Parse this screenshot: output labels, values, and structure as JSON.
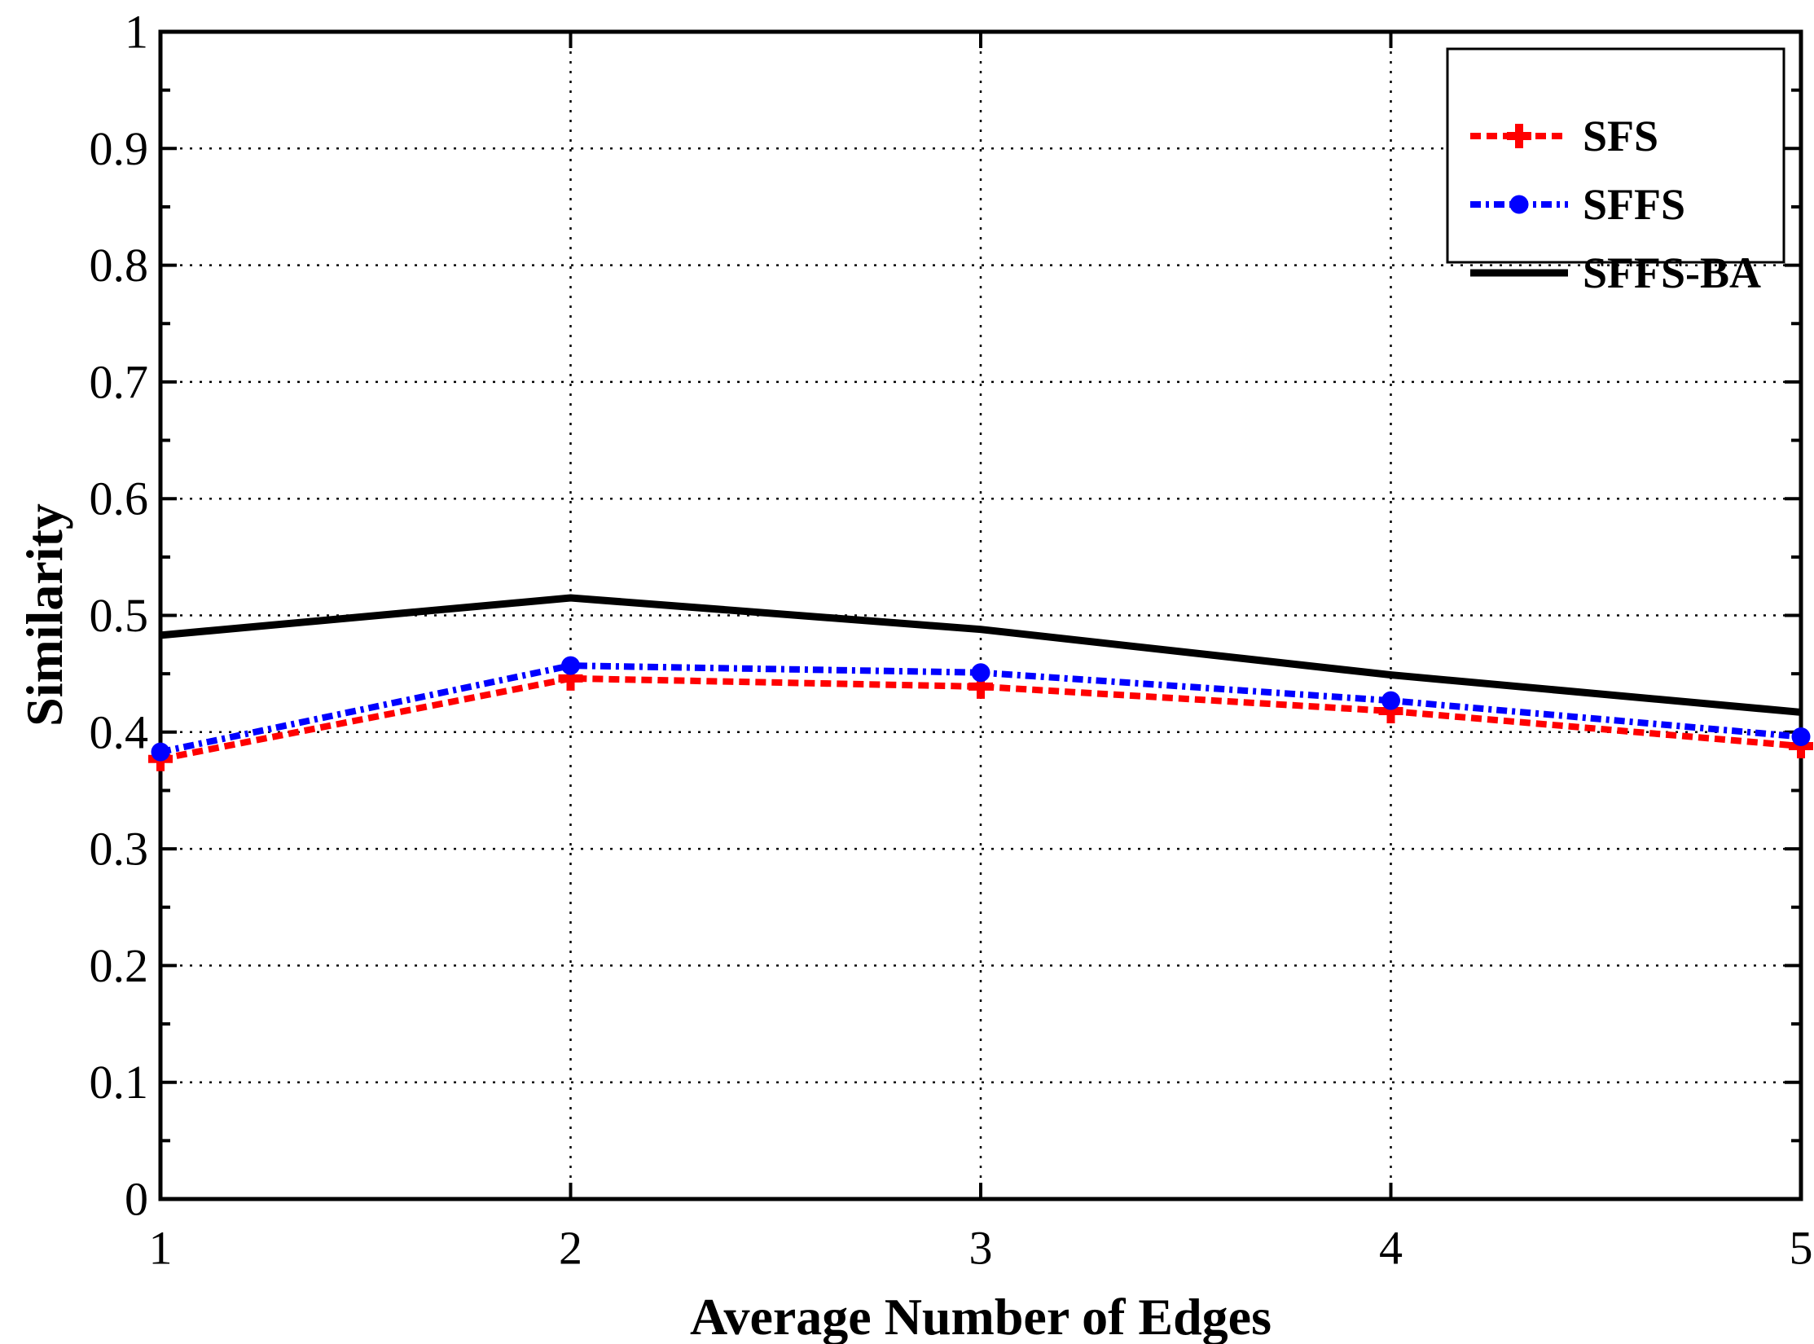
{
  "figure": {
    "background": "#ffffff",
    "axis_color": "#000000",
    "grid_color": "#000000"
  },
  "chart_data": {
    "type": "line",
    "title": "",
    "xlabel": "Average Number of Edges",
    "ylabel": "Similarity",
    "xlim": [
      1,
      5
    ],
    "ylim": [
      0,
      1
    ],
    "grid": "dotted major gridlines, y minor ticks every 0.05",
    "legend_position": "top-right",
    "x_ticks": [
      {
        "value": 1,
        "label": "1"
      },
      {
        "value": 2,
        "label": "2"
      },
      {
        "value": 3,
        "label": "3"
      },
      {
        "value": 4,
        "label": "4"
      },
      {
        "value": 5,
        "label": "5"
      }
    ],
    "y_ticks": [
      {
        "value": 0,
        "label": "0"
      },
      {
        "value": 0.1,
        "label": "0.1"
      },
      {
        "value": 0.2,
        "label": "0.2"
      },
      {
        "value": 0.3,
        "label": "0.3"
      },
      {
        "value": 0.4,
        "label": "0.4"
      },
      {
        "value": 0.5,
        "label": "0.5"
      },
      {
        "value": 0.6,
        "label": "0.6"
      },
      {
        "value": 0.7,
        "label": "0.7"
      },
      {
        "value": 0.8,
        "label": "0.8"
      },
      {
        "value": 0.9,
        "label": "0.9"
      },
      {
        "value": 1,
        "label": "1"
      }
    ],
    "y_minor_tick_step": 0.05,
    "x": [
      1,
      2,
      3,
      4,
      5
    ],
    "series": [
      {
        "name": "SFS",
        "color": "#ff0000",
        "line_style": "dashed",
        "marker": "plus",
        "values": [
          0.377,
          0.446,
          0.439,
          0.418,
          0.388
        ]
      },
      {
        "name": "SFFS",
        "color": "#0000ff",
        "line_style": "dash-dot",
        "marker": "filled-circle",
        "values": [
          0.383,
          0.457,
          0.451,
          0.427,
          0.396
        ]
      },
      {
        "name": "SFFS-BA",
        "color": "#000000",
        "line_style": "solid",
        "marker": "none",
        "values": [
          0.483,
          0.515,
          0.488,
          0.449,
          0.417
        ]
      }
    ]
  }
}
